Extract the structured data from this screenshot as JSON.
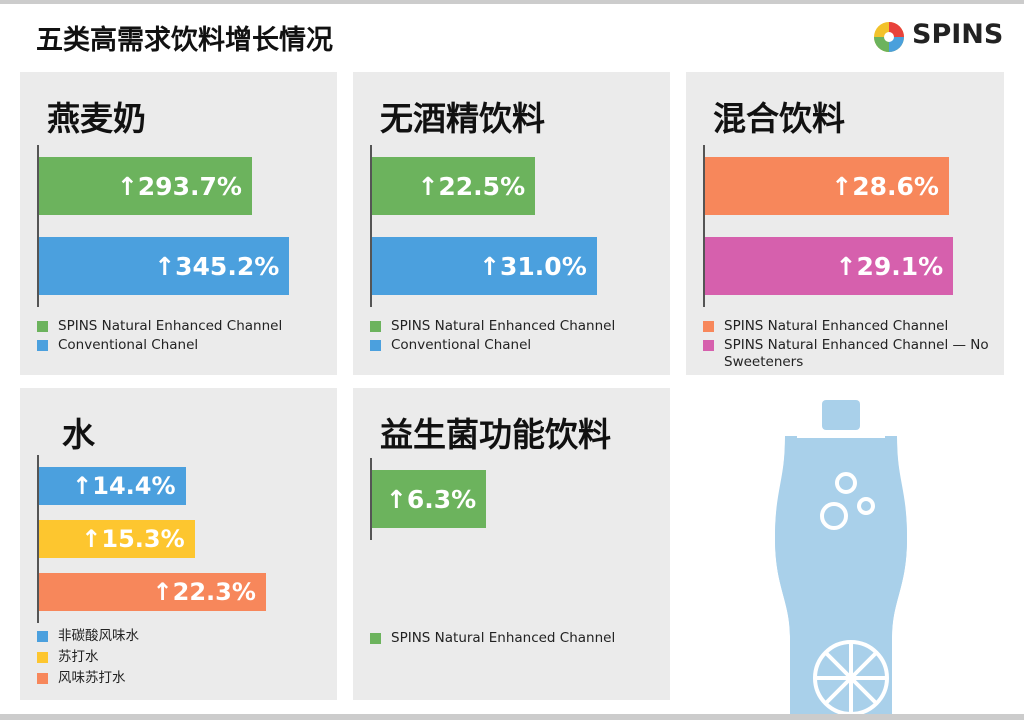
{
  "title": "五类高需求饮料增长情况",
  "logo": "SPINS",
  "chart_data": [
    {
      "type": "bar",
      "title": "燕麦奶",
      "xlim": [
        0,
        400
      ],
      "series": [
        {
          "name": "SPINS Natural Enhanced Channel",
          "color": "#6cb35d",
          "values": [
            293.7
          ],
          "value_labels": [
            "↑293.7%"
          ]
        },
        {
          "name": "Conventional Chanel",
          "color": "#4ba0de",
          "values": [
            345.2
          ],
          "value_labels": [
            "↑345.2%"
          ]
        }
      ]
    },
    {
      "type": "bar",
      "title": "无酒精饮料",
      "xlim": [
        0,
        40
      ],
      "series": [
        {
          "name": "SPINS Natural Enhanced Channel",
          "color": "#6cb35d",
          "values": [
            22.5
          ],
          "value_labels": [
            "↑22.5%"
          ]
        },
        {
          "name": "Conventional Chanel",
          "color": "#4ba0de",
          "values": [
            31.0
          ],
          "value_labels": [
            "↑31.0%"
          ]
        }
      ]
    },
    {
      "type": "bar",
      "title": "混合饮料",
      "xlim": [
        0,
        34
      ],
      "series": [
        {
          "name": "SPINS Natural Enhanced Channel",
          "color": "#f7875b",
          "values": [
            28.6
          ],
          "value_labels": [
            "↑28.6%"
          ]
        },
        {
          "name": "SPINS Natural Enhanced Channel — No Sweeteners",
          "color": "#d660ad",
          "values": [
            29.1
          ],
          "value_labels": [
            "↑29.1%"
          ]
        }
      ]
    },
    {
      "type": "bar",
      "title": "水",
      "xlim": [
        0,
        28.5
      ],
      "series": [
        {
          "name": "非碳酸风味水",
          "color": "#4ba0de",
          "values": [
            14.4
          ],
          "value_labels": [
            "↑14.4%"
          ]
        },
        {
          "name": "苏打水",
          "color": "#fdc62f",
          "values": [
            15.3
          ],
          "value_labels": [
            "↑15.3%"
          ]
        },
        {
          "name": "风味苏打水",
          "color": "#f7875b",
          "values": [
            22.3
          ],
          "value_labels": [
            "↑22.3%"
          ]
        }
      ]
    },
    {
      "type": "bar",
      "title": "益生菌功能饮料",
      "xlim": [
        0,
        16
      ],
      "series": [
        {
          "name": "SPINS Natural Enhanced Channel",
          "color": "#6cb35d",
          "values": [
            6.3
          ],
          "value_labels": [
            "↑6.3%"
          ]
        }
      ]
    }
  ]
}
